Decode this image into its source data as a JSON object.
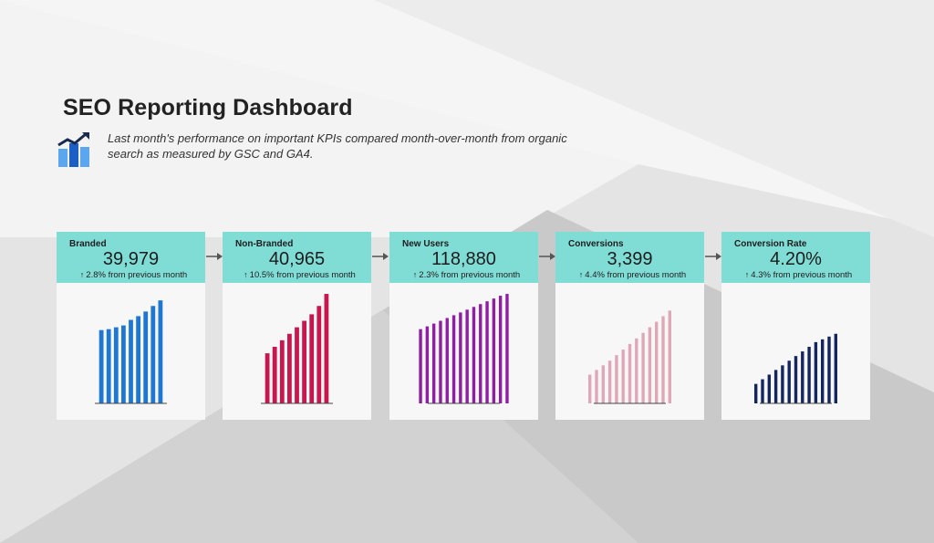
{
  "header": {
    "title": "SEO Reporting Dashboard",
    "subtitle": "Last month's performance on important KPIs compared month-over-month from organic search as measured by GSC and GA4.",
    "logo_icon": "trending-up-bar-chart-icon"
  },
  "colors": {
    "header_bg": "#80ddd6",
    "card_bg": "#f7f7f7"
  },
  "cards": [
    {
      "label": "Branded",
      "value": "39,979",
      "change": "2.8% from previous month",
      "change_icon": "arrow-up-icon",
      "color": "#1f77d4",
      "chart_data": {
        "type": "bar",
        "values": [
          7.9,
          8.0,
          8.2,
          8.4,
          9.0,
          9.4,
          9.9,
          10.5,
          11.1
        ]
      }
    },
    {
      "label": "Non-Branded",
      "value": "40,965",
      "change": "10.5% from previous month",
      "change_icon": "arrow-up-icon",
      "color": "#c8174f",
      "chart_data": {
        "type": "bar",
        "values": [
          5.4,
          6.1,
          6.8,
          7.5,
          8.2,
          8.9,
          9.6,
          10.5,
          11.8
        ]
      }
    },
    {
      "label": "New Users",
      "value": "118,880",
      "change": "2.3% from previous month",
      "change_icon": "arrow-up-icon",
      "color": "#8e1fa3",
      "chart_data": {
        "type": "bar",
        "values": [
          8.0,
          8.3,
          8.6,
          8.9,
          9.2,
          9.5,
          9.8,
          10.1,
          10.4,
          10.7,
          11.0,
          11.3,
          11.6,
          11.8
        ]
      }
    },
    {
      "label": "Conversions",
      "value": "3,399",
      "change": "4.4% from previous month",
      "change_icon": "arrow-up-icon",
      "color": "#dfa8b7",
      "chart_data": {
        "type": "bar",
        "values": [
          3.1,
          3.6,
          4.1,
          4.6,
          5.2,
          5.8,
          6.4,
          7.0,
          7.6,
          8.2,
          8.8,
          9.4,
          10.0
        ]
      }
    },
    {
      "label": "Conversion Rate",
      "value": "4.20%",
      "change": "4.3% from previous month",
      "change_icon": "arrow-up-icon",
      "color": "#14265f",
      "chart_data": {
        "type": "bar",
        "values": [
          2.1,
          2.6,
          3.1,
          3.6,
          4.1,
          4.6,
          5.1,
          5.6,
          6.1,
          6.6,
          6.9,
          7.2,
          7.5
        ]
      }
    }
  ]
}
